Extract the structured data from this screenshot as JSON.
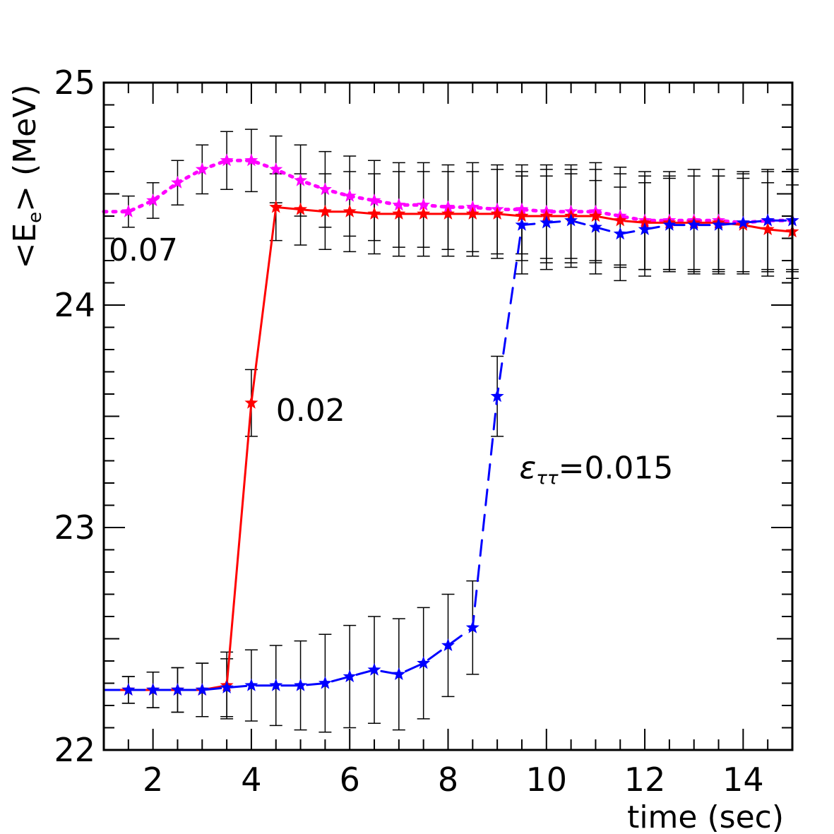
{
  "chart_data": {
    "type": "line",
    "xlabel": "time (sec)",
    "ylabel_main": "<E",
    "ylabel_sub": "e",
    "ylabel_tail": "> (MeV)",
    "xlim": [
      1,
      15
    ],
    "ylim": [
      22,
      25
    ],
    "x_ticks": [
      2,
      4,
      6,
      8,
      10,
      12,
      14
    ],
    "y_ticks": [
      22,
      23,
      24,
      25
    ],
    "grid": false,
    "annotations": [
      {
        "text": "0.07",
        "x": 1.1,
        "y": 24.2
      },
      {
        "text": "0.02",
        "x": 4.5,
        "y": 23.48
      },
      {
        "epsilon": "ε",
        "sub": "ττ",
        "text": "=0.015",
        "x": 9.45,
        "y": 23.22
      }
    ],
    "series": [
      {
        "color": "#ff00ff",
        "dash": "dotted",
        "x": [
          1.0,
          1.5,
          2.0,
          2.5,
          3.0,
          3.5,
          4.0,
          4.5,
          5.0,
          5.5,
          6.0,
          6.5,
          7.0,
          7.5,
          8.0,
          8.5,
          9.0,
          9.5,
          10.0,
          10.5,
          11.0,
          11.5,
          12.0,
          12.5,
          13.0,
          13.5,
          14.0,
          14.5,
          15.0
        ],
        "y": [
          24.42,
          24.42,
          24.47,
          24.55,
          24.61,
          24.65,
          24.65,
          24.61,
          24.56,
          24.52,
          24.49,
          24.47,
          24.45,
          24.45,
          24.44,
          24.44,
          24.43,
          24.43,
          24.42,
          24.42,
          24.42,
          24.4,
          24.38,
          24.38,
          24.38,
          24.38,
          24.37,
          24.38,
          24.38
        ],
        "err": [
          0.0,
          0.07,
          0.08,
          0.1,
          0.11,
          0.13,
          0.14,
          0.15,
          0.16,
          0.17,
          0.18,
          0.18,
          0.19,
          0.19,
          0.19,
          0.2,
          0.2,
          0.2,
          0.21,
          0.21,
          0.22,
          0.22,
          0.22,
          0.22,
          0.23,
          0.23,
          0.23,
          0.23,
          0.23
        ]
      },
      {
        "color": "#ff0000",
        "dash": "solid",
        "x": [
          1.0,
          1.5,
          2.0,
          2.5,
          3.0,
          3.5,
          4.0,
          4.5,
          5.0,
          5.5,
          6.0,
          6.5,
          7.0,
          7.5,
          8.0,
          8.5,
          9.0,
          9.5,
          10.0,
          10.5,
          11.0,
          11.5,
          12.0,
          12.5,
          13.0,
          13.5,
          14.0,
          14.5,
          15.0
        ],
        "y": [
          22.27,
          22.27,
          22.27,
          22.27,
          22.27,
          22.29,
          23.56,
          24.44,
          24.43,
          24.42,
          24.42,
          24.41,
          24.41,
          24.41,
          24.41,
          24.41,
          24.41,
          24.4,
          24.4,
          24.4,
          24.4,
          24.38,
          24.37,
          24.37,
          24.37,
          24.37,
          24.36,
          24.34,
          24.33
        ],
        "err": [
          0.0,
          0.06,
          0.08,
          0.1,
          0.12,
          0.15,
          0.15,
          0.15,
          0.16,
          0.17,
          0.18,
          0.18,
          0.19,
          0.19,
          0.19,
          0.19,
          0.2,
          0.2,
          0.21,
          0.21,
          0.21,
          0.21,
          0.21,
          0.21,
          0.21,
          0.21,
          0.21,
          0.21,
          0.21
        ]
      },
      {
        "color": "#0000ff",
        "dash": "dashed",
        "x": [
          1.0,
          1.5,
          2.0,
          2.5,
          3.0,
          3.5,
          4.0,
          4.5,
          5.0,
          5.5,
          6.0,
          6.5,
          7.0,
          7.5,
          8.0,
          8.5,
          9.0,
          9.5,
          10.0,
          10.5,
          11.0,
          11.5,
          12.0,
          12.5,
          13.0,
          13.5,
          14.0,
          14.5,
          15.0
        ],
        "y": [
          22.27,
          22.27,
          22.27,
          22.27,
          22.27,
          22.28,
          22.29,
          22.29,
          22.29,
          22.3,
          22.33,
          22.36,
          22.34,
          22.39,
          22.47,
          22.55,
          23.59,
          24.36,
          24.37,
          24.38,
          24.35,
          24.32,
          24.34,
          24.36,
          24.36,
          24.36,
          24.37,
          24.38,
          24.38
        ],
        "err": [
          0.0,
          0.06,
          0.08,
          0.1,
          0.12,
          0.13,
          0.16,
          0.18,
          0.2,
          0.22,
          0.23,
          0.24,
          0.25,
          0.25,
          0.23,
          0.21,
          0.18,
          0.22,
          0.21,
          0.21,
          0.21,
          0.21,
          0.21,
          0.21,
          0.22,
          0.22,
          0.22,
          0.22,
          0.22
        ]
      }
    ]
  }
}
